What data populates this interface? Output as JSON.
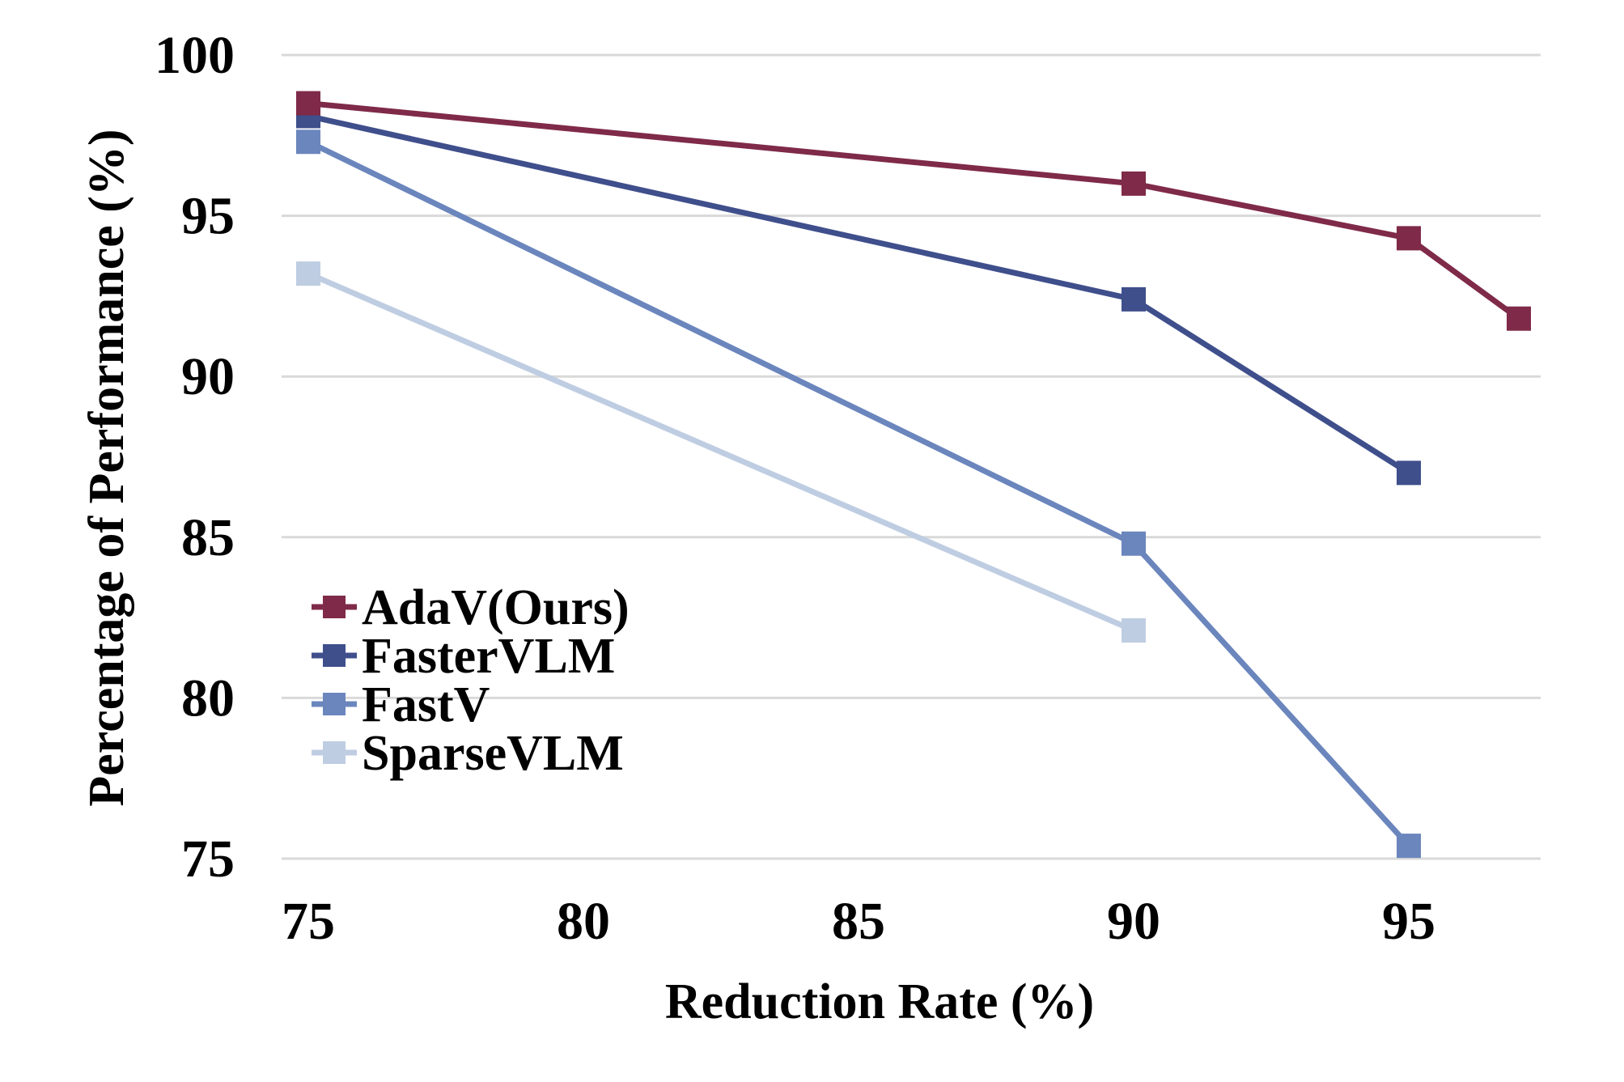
{
  "chart_data": {
    "type": "line",
    "title": "",
    "xlabel": "Reduction Rate (%)",
    "ylabel": "Percentage of  Performance (%)",
    "xlim": [
      75,
      97
    ],
    "ylim": [
      75,
      100
    ],
    "x_ticks": [
      "75",
      "80",
      "85",
      "90",
      "95"
    ],
    "y_ticks": [
      "75",
      "80",
      "85",
      "90",
      "95",
      "100"
    ],
    "grid": true,
    "legend_position": "middle-left",
    "series": [
      {
        "name": "AdaV(Ours)",
        "color": "#7f2a48",
        "x": [
          75,
          90,
          95,
          97
        ],
        "values": [
          98.5,
          96.0,
          94.3,
          91.8
        ]
      },
      {
        "name": "FasterVLM",
        "color": "#3f4f8c",
        "x": [
          75,
          90,
          95
        ],
        "values": [
          98.1,
          92.4,
          87.0
        ]
      },
      {
        "name": "FastV",
        "color": "#6b86bd",
        "x": [
          75,
          90,
          95
        ],
        "values": [
          97.3,
          84.8,
          75.4
        ]
      },
      {
        "name": "SparseVLM",
        "color": "#bfcde2",
        "x": [
          75,
          90
        ],
        "values": [
          93.2,
          82.1
        ]
      }
    ]
  }
}
